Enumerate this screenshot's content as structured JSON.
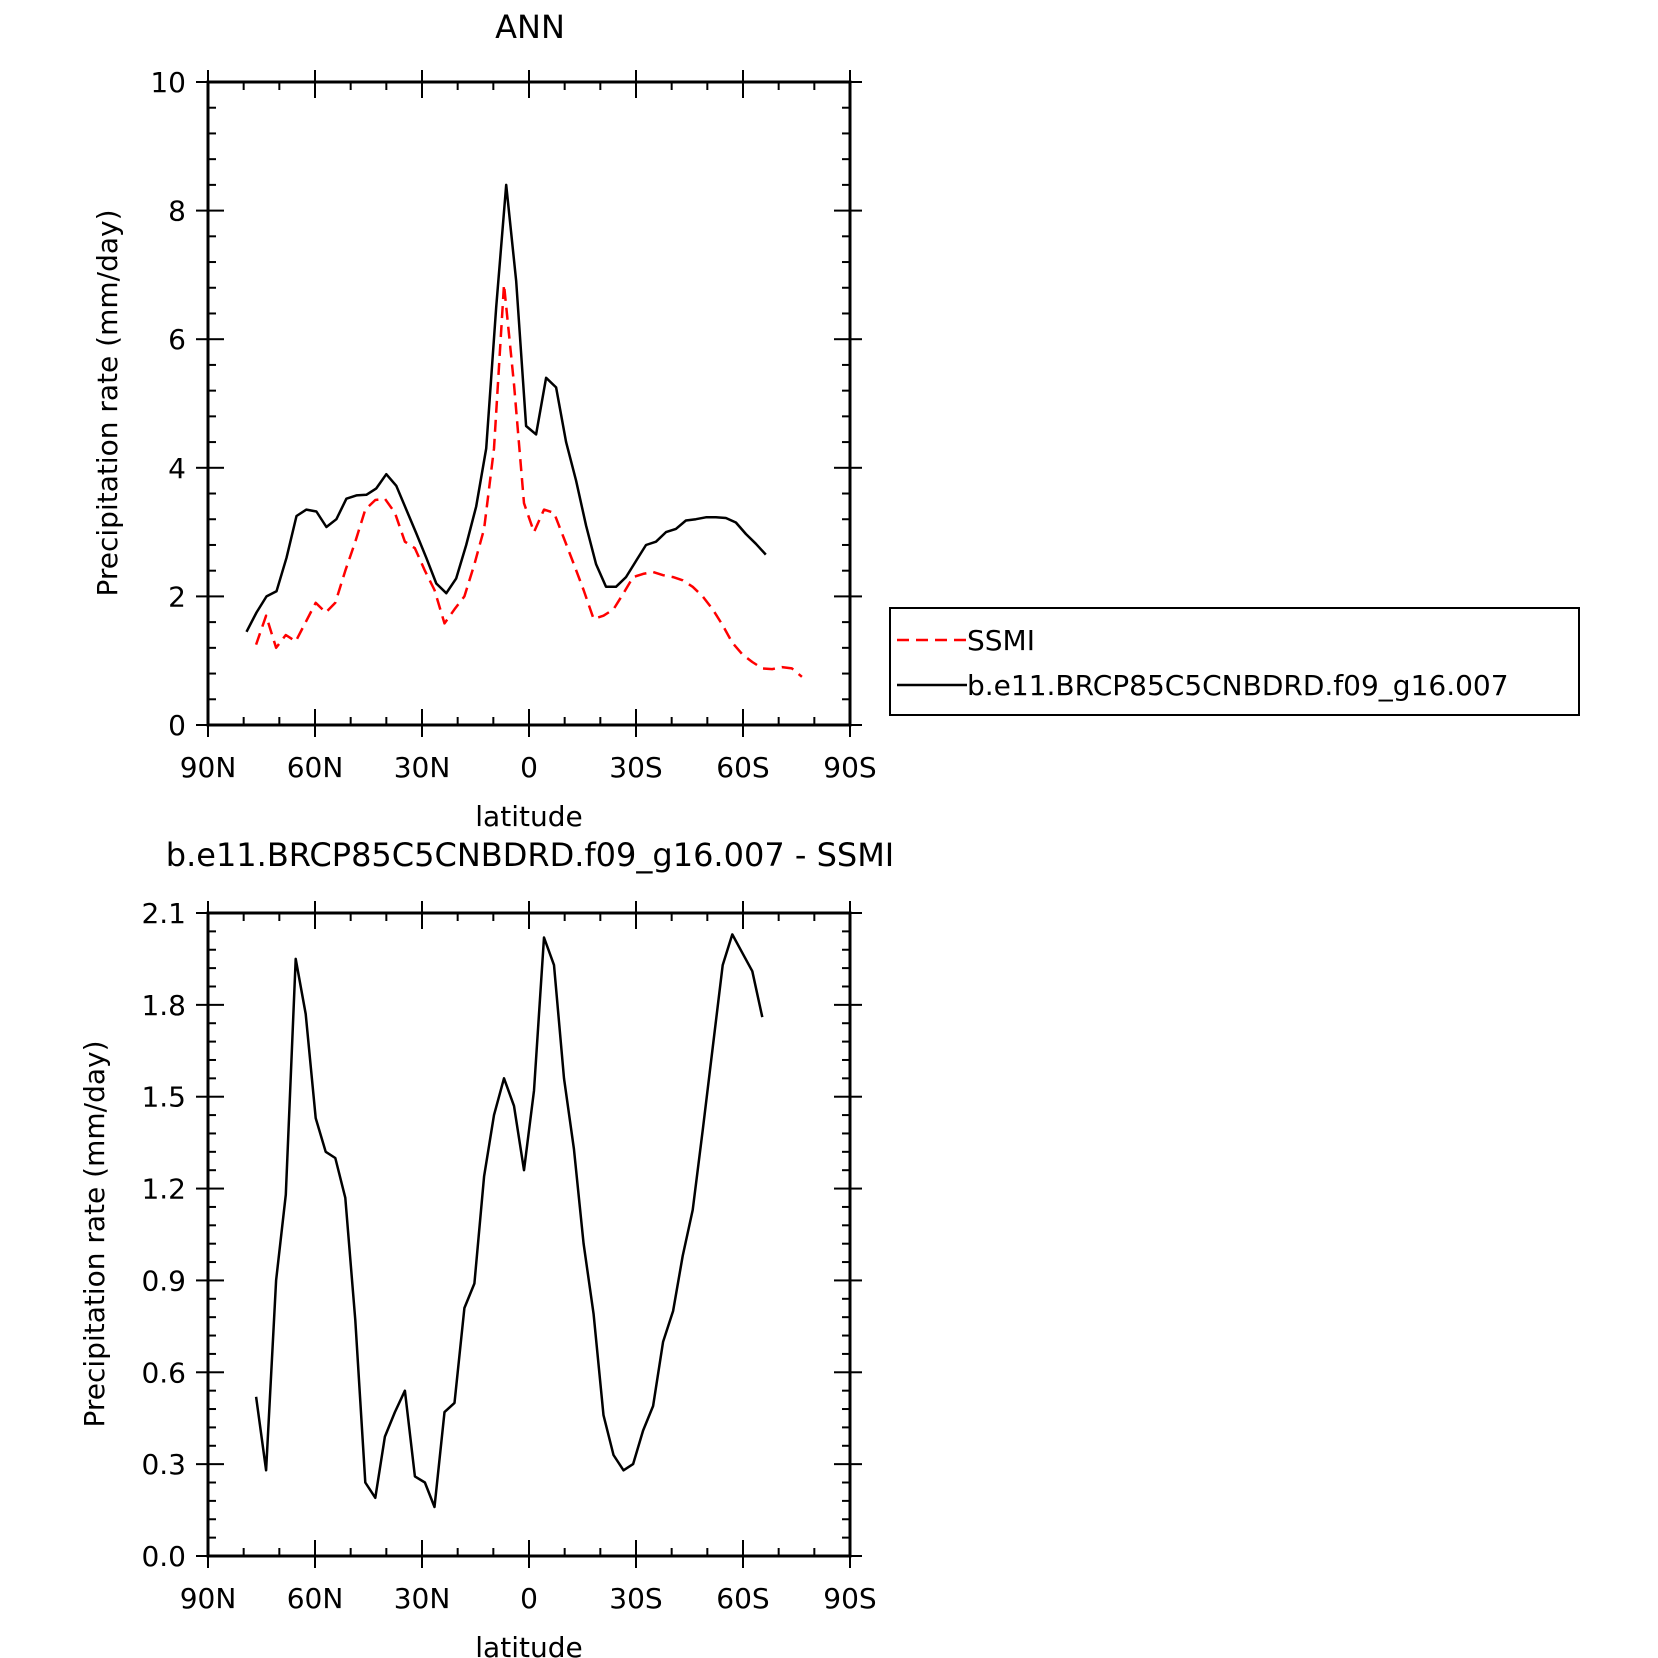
{
  "chart_data": [
    {
      "type": "line",
      "title": "ANN",
      "xlabel": "latitude",
      "ylabel": "Precipitation rate (mm/day)",
      "xlim": [
        90,
        -90
      ],
      "ylim": [
        0,
        10
      ],
      "xticks": [
        {
          "value": 90,
          "label": "90N"
        },
        {
          "value": 60,
          "label": "60N"
        },
        {
          "value": 30,
          "label": "30N"
        },
        {
          "value": 0,
          "label": "0"
        },
        {
          "value": -30,
          "label": "30S"
        },
        {
          "value": -60,
          "label": "60S"
        },
        {
          "value": -90,
          "label": "90S"
        }
      ],
      "yticks": [
        {
          "value": 0,
          "label": "0"
        },
        {
          "value": 2,
          "label": "2"
        },
        {
          "value": 4,
          "label": "4"
        },
        {
          "value": 6,
          "label": "6"
        },
        {
          "value": 8,
          "label": "8"
        },
        {
          "value": 10,
          "label": "10"
        }
      ],
      "legend_position": "right",
      "series": [
        {
          "name": "SSMI",
          "color": "#ff0000",
          "dash": true,
          "x": [
            76.5,
            73.7,
            70.9,
            68.2,
            65.4,
            62.6,
            59.8,
            57.0,
            54.3,
            51.5,
            48.7,
            45.9,
            43.1,
            40.4,
            37.6,
            34.8,
            32.0,
            29.2,
            26.5,
            23.7,
            20.9,
            18.1,
            15.3,
            12.6,
            9.8,
            7.0,
            4.2,
            1.4,
            -1.4,
            -4.2,
            -7.0,
            -9.8,
            -12.6,
            -15.3,
            -18.1,
            -20.9,
            -23.7,
            -26.5,
            -29.2,
            -32.0,
            -34.8,
            -37.6,
            -40.4,
            -43.1,
            -45.9,
            -48.7,
            -51.5,
            -54.3,
            -57.0,
            -59.8,
            -62.6,
            -65.4,
            -68.2,
            -70.9,
            -73.7,
            -76.5
          ],
          "y": [
            1.25,
            1.7,
            1.2,
            1.4,
            1.3,
            1.6,
            1.9,
            1.75,
            1.9,
            2.4,
            2.85,
            3.35,
            3.5,
            3.52,
            3.3,
            2.85,
            2.75,
            2.4,
            2.1,
            1.58,
            1.8,
            2.0,
            2.5,
            3.05,
            4.3,
            6.85,
            5.3,
            3.45,
            3.0,
            3.35,
            3.3,
            2.9,
            2.5,
            2.1,
            1.65,
            1.7,
            1.8,
            2.05,
            2.3,
            2.35,
            2.38,
            2.33,
            2.3,
            2.25,
            2.15,
            2.0,
            1.8,
            1.55,
            1.28,
            1.1,
            0.98,
            0.88,
            0.87,
            0.9,
            0.88,
            0.75
          ]
        },
        {
          "name": "b.e11.BRCP85C5CNBDRD.f09_g16.007",
          "color": "#000000",
          "dash": false,
          "x": [
            79.2,
            76.4,
            73.6,
            70.8,
            68.0,
            65.2,
            62.4,
            59.6,
            56.8,
            54.0,
            51.2,
            48.4,
            45.6,
            42.8,
            40.0,
            37.2,
            34.4,
            31.6,
            28.8,
            26.0,
            23.2,
            20.4,
            17.6,
            14.8,
            12.0,
            9.2,
            6.4,
            3.6,
            0.8,
            -2.0,
            -4.8,
            -7.6,
            -10.4,
            -13.2,
            -16.0,
            -18.8,
            -21.6,
            -24.4,
            -27.2,
            -30.0,
            -32.8,
            -35.6,
            -38.4,
            -41.2,
            -44.0,
            -46.8,
            -49.6,
            -52.4,
            -55.2,
            -58.0,
            -60.8,
            -63.6,
            -66.4
          ],
          "y": [
            1.45,
            1.75,
            2.0,
            2.08,
            2.6,
            3.25,
            3.35,
            3.32,
            3.08,
            3.2,
            3.52,
            3.57,
            3.58,
            3.68,
            3.9,
            3.72,
            3.35,
            2.98,
            2.6,
            2.2,
            2.05,
            2.28,
            2.8,
            3.4,
            4.3,
            6.5,
            8.4,
            6.9,
            4.65,
            4.52,
            5.4,
            5.25,
            4.4,
            3.8,
            3.1,
            2.5,
            2.15,
            2.15,
            2.3,
            2.55,
            2.8,
            2.85,
            3.0,
            3.05,
            3.18,
            3.2,
            3.23,
            3.23,
            3.22,
            3.15,
            2.97,
            2.82,
            2.65
          ]
        }
      ]
    },
    {
      "type": "line",
      "title": "b.e11.BRCP85C5CNBDRD.f09_g16.007 - SSMI",
      "xlabel": "latitude",
      "ylabel": "Precipitation rate (mm/day)",
      "xlim": [
        90,
        -90
      ],
      "ylim": [
        0,
        2.1
      ],
      "xticks": [
        {
          "value": 90,
          "label": "90N"
        },
        {
          "value": 60,
          "label": "60N"
        },
        {
          "value": 30,
          "label": "30N"
        },
        {
          "value": 0,
          "label": "0"
        },
        {
          "value": -30,
          "label": "30S"
        },
        {
          "value": -60,
          "label": "60S"
        },
        {
          "value": -90,
          "label": "90S"
        }
      ],
      "yticks": [
        {
          "value": 0,
          "label": "0.0"
        },
        {
          "value": 0.3,
          "label": "0.3"
        },
        {
          "value": 0.6,
          "label": "0.6"
        },
        {
          "value": 0.9,
          "label": "0.9"
        },
        {
          "value": 1.2,
          "label": "1.2"
        },
        {
          "value": 1.5,
          "label": "1.5"
        },
        {
          "value": 1.8,
          "label": "1.8"
        },
        {
          "value": 2.1,
          "label": "2.1"
        }
      ],
      "series": [
        {
          "color": "#000000",
          "dash": false,
          "x": [
            76.5,
            73.7,
            70.9,
            68.2,
            65.4,
            62.6,
            59.8,
            57.0,
            54.3,
            51.5,
            48.7,
            45.9,
            43.1,
            40.4,
            37.6,
            34.8,
            32.0,
            29.2,
            26.5,
            23.7,
            20.9,
            18.1,
            15.3,
            12.6,
            9.8,
            7.0,
            4.2,
            1.4,
            -1.4,
            -4.2,
            -7.0,
            -9.8,
            -12.6,
            -15.3,
            -18.1,
            -20.9,
            -23.7,
            -26.5,
            -29.2,
            -32.0,
            -34.8,
            -37.6,
            -40.4,
            -43.1,
            -45.9,
            -48.7,
            -51.5,
            -54.3,
            -57.0,
            -59.8,
            -62.6,
            -65.4
          ],
          "y": [
            0.52,
            0.28,
            0.9,
            1.18,
            1.95,
            1.77,
            1.43,
            1.32,
            1.3,
            1.17,
            0.77,
            0.24,
            0.19,
            0.39,
            0.47,
            0.54,
            0.26,
            0.24,
            0.16,
            0.47,
            0.5,
            0.81,
            0.89,
            1.24,
            1.44,
            1.56,
            1.47,
            1.26,
            1.52,
            2.02,
            1.93,
            1.56,
            1.33,
            1.02,
            0.79,
            0.46,
            0.33,
            0.28,
            0.3,
            0.41,
            0.49,
            0.7,
            0.8,
            0.98,
            1.13,
            1.39,
            1.66,
            1.93,
            2.03,
            1.97,
            1.91,
            1.76
          ]
        }
      ]
    }
  ]
}
